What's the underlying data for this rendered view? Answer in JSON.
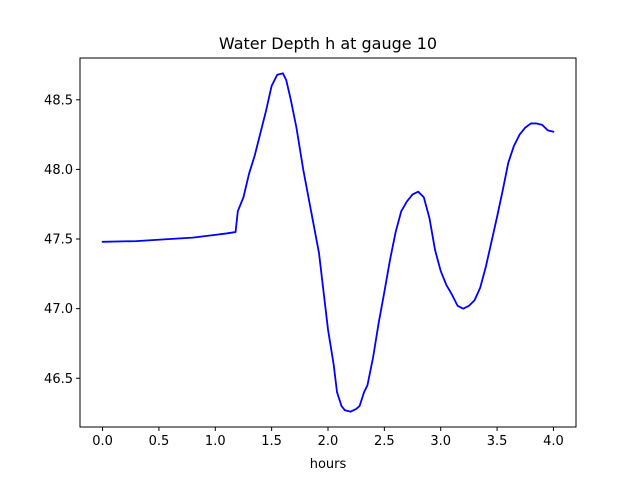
{
  "chart_data": {
    "type": "line",
    "title": "Water Depth h at gauge 10",
    "xlabel": "hours",
    "ylabel": "",
    "xlim": [
      -0.2,
      4.2
    ],
    "ylim": [
      46.15,
      48.8
    ],
    "xticks": [
      0.0,
      0.5,
      1.0,
      1.5,
      2.0,
      2.5,
      3.0,
      3.5,
      4.0
    ],
    "xtick_labels": [
      "0.0",
      "0.5",
      "1.0",
      "1.5",
      "2.0",
      "2.5",
      "3.0",
      "3.5",
      "4.0"
    ],
    "yticks": [
      46.5,
      47.0,
      47.5,
      48.0,
      48.5
    ],
    "ytick_labels": [
      "46.5",
      "47.0",
      "47.5",
      "48.0",
      "48.5"
    ],
    "grid": false,
    "series": [
      {
        "color": "#0000ff",
        "x": [
          0.0,
          0.3,
          0.6,
          0.8,
          1.0,
          1.1,
          1.18,
          1.2,
          1.25,
          1.3,
          1.35,
          1.4,
          1.45,
          1.5,
          1.55,
          1.6,
          1.63,
          1.67,
          1.72,
          1.78,
          1.85,
          1.92,
          2.0,
          2.05,
          2.08,
          2.12,
          2.15,
          2.2,
          2.25,
          2.28,
          2.32,
          2.35,
          2.4,
          2.45,
          2.5,
          2.55,
          2.6,
          2.65,
          2.7,
          2.75,
          2.8,
          2.85,
          2.9,
          2.95,
          3.0,
          3.05,
          3.1,
          3.15,
          3.2,
          3.25,
          3.3,
          3.35,
          3.4,
          3.45,
          3.5,
          3.55,
          3.6,
          3.65,
          3.7,
          3.75,
          3.8,
          3.85,
          3.9,
          3.95,
          4.0
        ],
        "y": [
          47.48,
          47.485,
          47.5,
          47.51,
          47.53,
          47.54,
          47.55,
          47.7,
          47.8,
          47.97,
          48.1,
          48.26,
          48.42,
          48.6,
          48.68,
          48.69,
          48.64,
          48.5,
          48.3,
          48.0,
          47.7,
          47.4,
          46.85,
          46.6,
          46.4,
          46.3,
          46.27,
          46.26,
          46.28,
          46.3,
          46.4,
          46.45,
          46.65,
          46.9,
          47.12,
          47.35,
          47.55,
          47.7,
          47.77,
          47.82,
          47.84,
          47.8,
          47.65,
          47.42,
          47.27,
          47.17,
          47.1,
          47.02,
          47.0,
          47.02,
          47.06,
          47.15,
          47.3,
          47.48,
          47.66,
          47.85,
          48.05,
          48.17,
          48.25,
          48.3,
          48.33,
          48.33,
          48.32,
          48.28,
          48.27
        ]
      }
    ]
  }
}
